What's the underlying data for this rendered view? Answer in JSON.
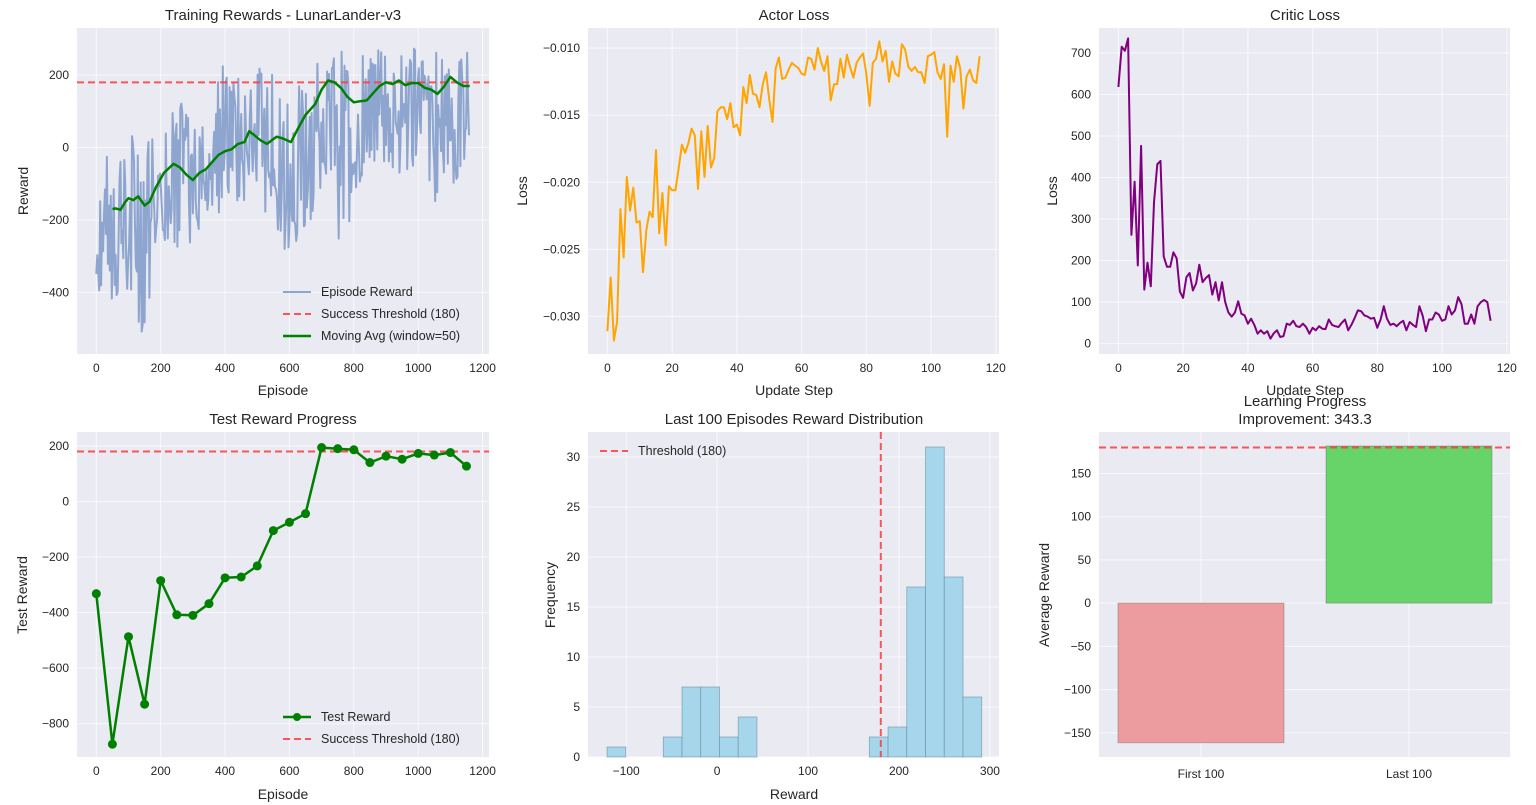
{
  "chart_data": [
    {
      "id": "training-rewards",
      "type": "line",
      "title": "Training Rewards - LunarLander-v3",
      "xlabel": "Episode",
      "ylabel": "Reward",
      "xlim": [
        -60,
        1220
      ],
      "ylim": [
        -570,
        330
      ],
      "xticks": [
        0,
        200,
        400,
        600,
        800,
        1000,
        1200
      ],
      "yticks": [
        -400,
        -200,
        0,
        200
      ],
      "grid": true,
      "legend": {
        "position": "bottom-right",
        "entries": [
          "Episode Reward",
          "Success Threshold (180)",
          "Moving Avg (window=50)"
        ]
      },
      "threshold": 180,
      "episode_reward_envelope": {
        "x": [
          0,
          50,
          100,
          150,
          200,
          250,
          300,
          350,
          400,
          450,
          500,
          550,
          600,
          650,
          700,
          750,
          800,
          850,
          900,
          950,
          1000,
          1050,
          1100,
          1160
        ],
        "high": [
          -80,
          10,
          40,
          30,
          80,
          120,
          130,
          110,
          250,
          190,
          220,
          210,
          180,
          230,
          260,
          270,
          260,
          260,
          280,
          270,
          280,
          270,
          300,
          270
        ],
        "low": [
          -410,
          -420,
          -420,
          -530,
          -260,
          -280,
          -260,
          -200,
          -180,
          -150,
          -140,
          -230,
          -340,
          -250,
          -100,
          -270,
          -240,
          -50,
          -60,
          -80,
          -50,
          -160,
          -120,
          -20
        ]
      },
      "moving_avg": {
        "x": [
          50,
          60,
          75,
          90,
          100,
          115,
          130,
          150,
          165,
          185,
          210,
          240,
          260,
          280,
          300,
          320,
          340,
          360,
          380,
          400,
          420,
          440,
          460,
          475,
          490,
          510,
          530,
          560,
          580,
          605,
          625,
          650,
          680,
          700,
          720,
          740,
          760,
          780,
          800,
          820,
          840,
          860,
          880,
          900,
          920,
          940,
          960,
          980,
          1000,
          1020,
          1040,
          1060,
          1080,
          1100,
          1120,
          1140,
          1160
        ],
        "y": [
          -170,
          -168,
          -172,
          -150,
          -140,
          -145,
          -135,
          -160,
          -150,
          -110,
          -70,
          -45,
          -55,
          -75,
          -90,
          -70,
          -60,
          -40,
          -20,
          -10,
          -5,
          10,
          15,
          45,
          35,
          20,
          10,
          30,
          25,
          15,
          50,
          90,
          120,
          160,
          185,
          180,
          165,
          140,
          125,
          128,
          130,
          150,
          170,
          180,
          175,
          185,
          172,
          178,
          178,
          165,
          160,
          148,
          168,
          195,
          180,
          170,
          170
        ]
      }
    },
    {
      "id": "actor-loss",
      "type": "line",
      "title": "Actor Loss",
      "xlabel": "Update Step",
      "ylabel": "Loss",
      "xlim": [
        -6,
        121
      ],
      "ylist_note": "",
      "ylim": [
        -0.0328,
        -0.0085
      ],
      "xticks": [
        0,
        20,
        40,
        60,
        80,
        100,
        120
      ],
      "yticks": [
        -0.03,
        -0.025,
        -0.02,
        -0.015,
        -0.01
      ],
      "ytick_labels": [
        "−0.030",
        "−0.025",
        "−0.020",
        "−0.015",
        "−0.010"
      ],
      "grid": true,
      "x": [
        0,
        1,
        2,
        3,
        4,
        5,
        6,
        7,
        8,
        9,
        10,
        11,
        12,
        13,
        14,
        15,
        16,
        17,
        18,
        19,
        20,
        21,
        22,
        23,
        24,
        25,
        26,
        27,
        28,
        29,
        30,
        31,
        32,
        33,
        34,
        35,
        36,
        37,
        38,
        39,
        40,
        41,
        42,
        43,
        44,
        45,
        46,
        47,
        48,
        49,
        50,
        51,
        52,
        53,
        54,
        55,
        56,
        57,
        58,
        59,
        60,
        61,
        62,
        63,
        64,
        65,
        66,
        67,
        68,
        69,
        70,
        71,
        72,
        73,
        74,
        75,
        76,
        77,
        78,
        79,
        80,
        81,
        82,
        83,
        84,
        85,
        86,
        87,
        88,
        89,
        90,
        91,
        92,
        93,
        94,
        95,
        96,
        97,
        98,
        99,
        100,
        101,
        102,
        103,
        104,
        105,
        106,
        107,
        108,
        109,
        110,
        111,
        112,
        113,
        114,
        115
      ],
      "y": [
        -0.0311,
        -0.0271,
        -0.0318,
        -0.0304,
        -0.022,
        -0.0256,
        -0.0196,
        -0.0221,
        -0.0204,
        -0.023,
        -0.0229,
        -0.0267,
        -0.0236,
        -0.0222,
        -0.0226,
        -0.0176,
        -0.0238,
        -0.0208,
        -0.0247,
        -0.0203,
        -0.0206,
        -0.0206,
        -0.019,
        -0.0172,
        -0.0178,
        -0.0171,
        -0.016,
        -0.0165,
        -0.0205,
        -0.0162,
        -0.0196,
        -0.0158,
        -0.0189,
        -0.0182,
        -0.0147,
        -0.0144,
        -0.0144,
        -0.0153,
        -0.0141,
        -0.0159,
        -0.0157,
        -0.0165,
        -0.0129,
        -0.0141,
        -0.012,
        -0.0134,
        -0.0135,
        -0.0144,
        -0.0127,
        -0.0118,
        -0.0138,
        -0.0155,
        -0.0115,
        -0.0107,
        -0.0123,
        -0.0122,
        -0.0116,
        -0.0111,
        -0.0113,
        -0.0115,
        -0.0119,
        -0.012,
        -0.0107,
        -0.0108,
        -0.0116,
        -0.01,
        -0.011,
        -0.0117,
        -0.0106,
        -0.0139,
        -0.0127,
        -0.0127,
        -0.0108,
        -0.0122,
        -0.0105,
        -0.0114,
        -0.0122,
        -0.0111,
        -0.0107,
        -0.0104,
        -0.0119,
        -0.0143,
        -0.0111,
        -0.0108,
        -0.0095,
        -0.011,
        -0.0102,
        -0.0125,
        -0.011,
        -0.0119,
        -0.0121,
        -0.0097,
        -0.0101,
        -0.0114,
        -0.0117,
        -0.0114,
        -0.0118,
        -0.0118,
        -0.0126,
        -0.0106,
        -0.0105,
        -0.0103,
        -0.0118,
        -0.0123,
        -0.0112,
        -0.0166,
        -0.0113,
        -0.0125,
        -0.0106,
        -0.0115,
        -0.0145,
        -0.0121,
        -0.0116,
        -0.0124,
        -0.0126,
        -0.0106
      ]
    },
    {
      "id": "critic-loss",
      "type": "line",
      "title": "Critic Loss",
      "xlabel": "Update Step",
      "ylabel": "Loss",
      "xlim": [
        -6,
        121
      ],
      "ylim": [
        -25,
        760
      ],
      "xticks": [
        0,
        20,
        40,
        60,
        80,
        100,
        120
      ],
      "yticks": [
        0,
        100,
        200,
        300,
        400,
        500,
        600,
        700
      ],
      "grid": true,
      "x": [
        0,
        1,
        2,
        3,
        4,
        5,
        6,
        7,
        8,
        9,
        10,
        11,
        12,
        13,
        14,
        15,
        16,
        17,
        18,
        19,
        20,
        21,
        22,
        23,
        24,
        25,
        26,
        27,
        28,
        29,
        30,
        31,
        32,
        33,
        34,
        35,
        36,
        37,
        38,
        39,
        40,
        41,
        42,
        43,
        44,
        45,
        46,
        47,
        48,
        49,
        50,
        51,
        52,
        53,
        54,
        55,
        56,
        57,
        58,
        59,
        60,
        61,
        62,
        63,
        64,
        65,
        66,
        67,
        68,
        69,
        70,
        71,
        72,
        73,
        74,
        75,
        76,
        77,
        78,
        79,
        80,
        81,
        82,
        83,
        84,
        85,
        86,
        87,
        88,
        89,
        90,
        91,
        92,
        93,
        94,
        95,
        96,
        97,
        98,
        99,
        100,
        101,
        102,
        103,
        104,
        105,
        106,
        107,
        108,
        109,
        110,
        111,
        112,
        113,
        114,
        115
      ],
      "y": [
        618,
        715,
        705,
        735,
        262,
        390,
        188,
        476,
        130,
        195,
        138,
        340,
        432,
        440,
        210,
        185,
        185,
        220,
        205,
        125,
        110,
        160,
        170,
        128,
        145,
        190,
        148,
        158,
        165,
        118,
        148,
        104,
        148,
        100,
        75,
        65,
        75,
        102,
        72,
        68,
        48,
        60,
        45,
        24,
        32,
        24,
        30,
        12,
        25,
        32,
        16,
        18,
        48,
        45,
        55,
        42,
        40,
        48,
        40,
        24,
        38,
        32,
        42,
        36,
        35,
        58,
        45,
        42,
        40,
        50,
        58,
        32,
        45,
        62,
        80,
        78,
        68,
        65,
        60,
        62,
        38,
        58,
        90,
        60,
        45,
        48,
        42,
        50,
        55,
        32,
        52,
        45,
        40,
        90,
        68,
        30,
        58,
        58,
        75,
        70,
        55,
        58,
        90,
        70,
        80,
        112,
        95,
        48,
        48,
        70,
        48,
        90,
        100,
        105,
        100,
        55
      ]
    },
    {
      "id": "test-reward",
      "type": "line",
      "title": "Test Reward Progress",
      "xlabel": "Episode",
      "ylabel": "Test Reward",
      "xlim": [
        -60,
        1220
      ],
      "ylim": [
        -920,
        250
      ],
      "xticks": [
        0,
        200,
        400,
        600,
        800,
        1000,
        1200
      ],
      "yticks": [
        -800,
        -600,
        -400,
        -200,
        0,
        200
      ],
      "grid": true,
      "threshold": 180,
      "legend": {
        "position": "bottom-right",
        "entries": [
          "Test Reward",
          "Success Threshold (180)"
        ]
      },
      "x": [
        0,
        50,
        100,
        150,
        200,
        250,
        300,
        350,
        400,
        450,
        500,
        550,
        600,
        650,
        700,
        750,
        800,
        850,
        900,
        950,
        1000,
        1050,
        1100,
        1150
      ],
      "y": [
        -332,
        -874,
        -487,
        -730,
        -285,
        -408,
        -410,
        -368,
        -275,
        -272,
        -232,
        -105,
        -75,
        -44,
        194,
        190,
        186,
        140,
        163,
        152,
        173,
        167,
        176,
        127
      ]
    },
    {
      "id": "reward-distribution",
      "type": "bar",
      "title": "Last 100 Episodes Reward Distribution",
      "xlabel": "Reward",
      "ylabel": "Frequency",
      "xlim": [
        -142,
        310
      ],
      "ylim": [
        0,
        32.5
      ],
      "xticks": [
        -100,
        0,
        100,
        200,
        300
      ],
      "yticks": [
        0,
        5,
        10,
        15,
        20,
        25,
        30
      ],
      "grid": true,
      "threshold": 180,
      "legend": {
        "position": "top-left",
        "entries": [
          "Threshold (180)"
        ]
      },
      "bin_edges": [
        -121,
        -100.4,
        -79.8,
        -59.2,
        -38.6,
        -18,
        2.6,
        23.2,
        43.8,
        64.4,
        85,
        105.6,
        126.2,
        146.8,
        167.4,
        188,
        208.6,
        229.2,
        249.8,
        270.4,
        291
      ],
      "counts": [
        1,
        0,
        0,
        2,
        7,
        7,
        2,
        4,
        0,
        0,
        0,
        0,
        0,
        0,
        2,
        3,
        17,
        31,
        18,
        6
      ]
    },
    {
      "id": "learning-progress",
      "type": "bar",
      "title": "Learning Progress",
      "subtitle": "Improvement: 343.3",
      "xlabel": "",
      "ylabel": "Average Reward",
      "ylim": [
        -178,
        198
      ],
      "yticks": [
        -150,
        -100,
        -50,
        0,
        50,
        100,
        150
      ],
      "grid": true,
      "threshold": 180,
      "categories": [
        "First 100",
        "Last 100"
      ],
      "values": [
        -161.5,
        181.8
      ]
    }
  ],
  "colors": {
    "episode_reward": "#8ea6cf",
    "moving_avg": "#008000",
    "threshold": "#ff3b3b",
    "actor_loss": "#ffa500",
    "critic_loss": "#800080",
    "test_reward": "#008000",
    "hist_fill": "#a6d6ec",
    "hist_edge": "#6b8fa0",
    "bar_first": "#ec9c9f",
    "bar_last": "#67d46a",
    "panel_bg": "#eaeaf2"
  }
}
